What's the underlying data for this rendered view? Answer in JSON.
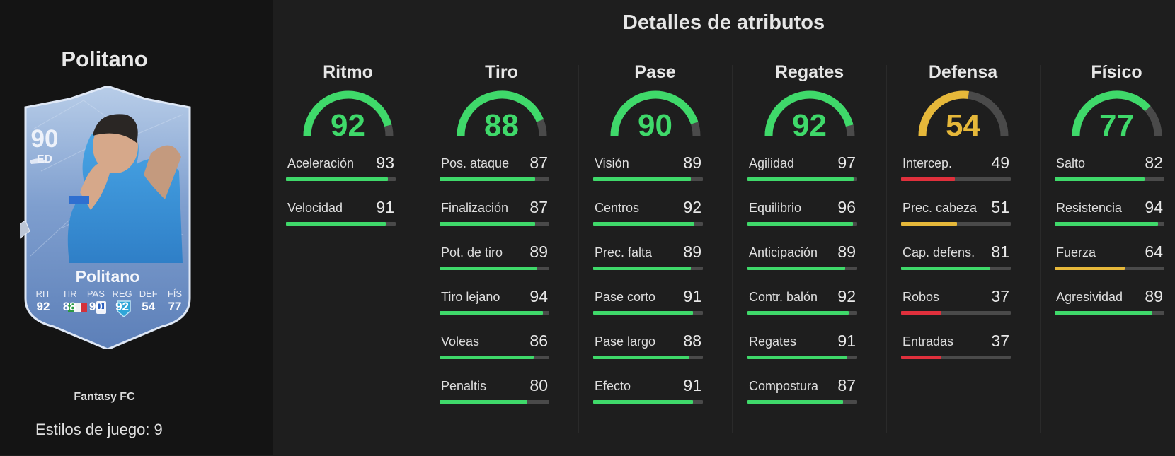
{
  "player": {
    "name": "Politano",
    "rating": "90",
    "position": "ED",
    "card_stats": [
      {
        "label": "RIT",
        "value": "92"
      },
      {
        "label": "TIR",
        "value": "88"
      },
      {
        "label": "PAS",
        "value": "90"
      },
      {
        "label": "REG",
        "value": "92"
      },
      {
        "label": "DEF",
        "value": "54"
      },
      {
        "label": "FÍS",
        "value": "77"
      }
    ],
    "club": "Fantasy FC",
    "playstyles_label": "Estilos de juego: 9",
    "icons": [
      "boot-icon",
      "playstyle-icon",
      "italy-flag-icon",
      "serie-a-icon",
      "club-crest-icon"
    ]
  },
  "title": "Detalles de atributos",
  "colors": {
    "high": "#3fd96a",
    "mid": "#e6b83a",
    "low": "#e0303c",
    "track": "#4a4a4a"
  },
  "categories": [
    {
      "name": "Ritmo",
      "value": 92,
      "attributes": [
        {
          "name": "Aceleración",
          "value": 93
        },
        {
          "name": "Velocidad",
          "value": 91
        }
      ]
    },
    {
      "name": "Tiro",
      "value": 88,
      "attributes": [
        {
          "name": "Pos. ataque",
          "value": 87
        },
        {
          "name": "Finalización",
          "value": 87
        },
        {
          "name": "Pot. de tiro",
          "value": 89
        },
        {
          "name": "Tiro lejano",
          "value": 94
        },
        {
          "name": "Voleas",
          "value": 86
        },
        {
          "name": "Penaltis",
          "value": 80
        }
      ]
    },
    {
      "name": "Pase",
      "value": 90,
      "attributes": [
        {
          "name": "Visión",
          "value": 89
        },
        {
          "name": "Centros",
          "value": 92
        },
        {
          "name": "Prec. falta",
          "value": 89
        },
        {
          "name": "Pase corto",
          "value": 91
        },
        {
          "name": "Pase largo",
          "value": 88
        },
        {
          "name": "Efecto",
          "value": 91
        }
      ]
    },
    {
      "name": "Regates",
      "value": 92,
      "attributes": [
        {
          "name": "Agilidad",
          "value": 97
        },
        {
          "name": "Equilibrio",
          "value": 96
        },
        {
          "name": "Anticipación",
          "value": 89
        },
        {
          "name": "Contr. balón",
          "value": 92
        },
        {
          "name": "Regates",
          "value": 91
        },
        {
          "name": "Compostura",
          "value": 87
        }
      ]
    },
    {
      "name": "Defensa",
      "value": 54,
      "attributes": [
        {
          "name": "Intercep.",
          "value": 49
        },
        {
          "name": "Prec. cabeza",
          "value": 51
        },
        {
          "name": "Cap. defens.",
          "value": 81
        },
        {
          "name": "Robos",
          "value": 37
        },
        {
          "name": "Entradas",
          "value": 37
        }
      ]
    },
    {
      "name": "Físico",
      "value": 77,
      "attributes": [
        {
          "name": "Salto",
          "value": 82
        },
        {
          "name": "Resistencia",
          "value": 94
        },
        {
          "name": "Fuerza",
          "value": 64
        },
        {
          "name": "Agresividad",
          "value": 89
        }
      ]
    }
  ]
}
